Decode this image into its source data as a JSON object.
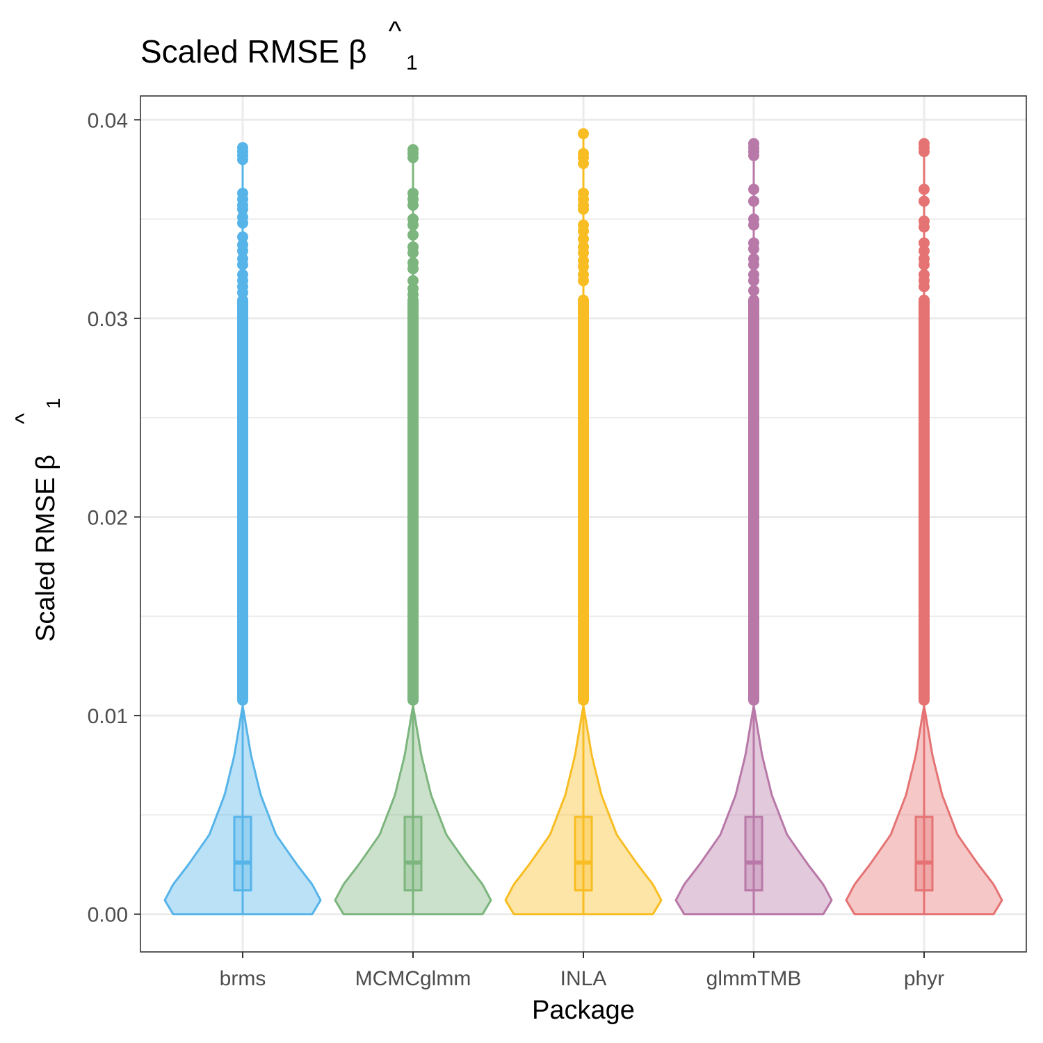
{
  "chart_data": {
    "type": "violin",
    "title": "Scaled RMSE β̂1",
    "title_parts": {
      "main": "Scaled RMSE β",
      "hat": "^",
      "sub": "1"
    },
    "xlabel": "Package",
    "ylabel": "Scaled RMSE β̂1",
    "ylabel_parts": {
      "main": "Scaled RMSE β",
      "hat": "^",
      "sub": "1"
    },
    "ylim": [
      -0.0019,
      0.0412
    ],
    "yticks": [
      0.0,
      0.01,
      0.02,
      0.03,
      0.04
    ],
    "ytick_labels": [
      "0.00",
      "0.01",
      "0.02",
      "0.03",
      "0.04"
    ],
    "grid": true,
    "legend": "none",
    "categories": [
      "brms",
      "MCMCglmm",
      "INLA",
      "glmmTMB",
      "phyr"
    ],
    "series": [
      {
        "color": "#56B4E9",
        "box": {
          "q1": 0.0012,
          "median": 0.0026,
          "q3": 0.0049,
          "whisker_low": 0.0,
          "whisker_high": 0.0105
        },
        "max": 0.0386,
        "outliers": [
          0.0386,
          0.0384,
          0.0382,
          0.038,
          0.0363,
          0.036,
          0.0357,
          0.0355,
          0.0351,
          0.0348,
          0.0341,
          0.0337,
          0.0334,
          0.033,
          0.0327,
          0.0322,
          0.0319,
          0.0316,
          0.0313
        ]
      },
      {
        "color": "#7CB57D",
        "box": {
          "q1": 0.0012,
          "median": 0.0026,
          "q3": 0.0049,
          "whisker_low": 0.0,
          "whisker_high": 0.0105
        },
        "max": 0.0385,
        "outliers": [
          0.0385,
          0.0383,
          0.0381,
          0.0363,
          0.036,
          0.0357,
          0.035,
          0.0347,
          0.0342,
          0.0336,
          0.0333,
          0.0328,
          0.0325,
          0.0319,
          0.0315,
          0.0312
        ]
      },
      {
        "color": "#F8BD23",
        "box": {
          "q1": 0.0012,
          "median": 0.0026,
          "q3": 0.0049,
          "whisker_low": 0.0,
          "whisker_high": 0.0105
        },
        "max": 0.0393,
        "outliers": [
          0.0393,
          0.0383,
          0.0381,
          0.0378,
          0.0363,
          0.036,
          0.0357,
          0.0355,
          0.0347,
          0.0344,
          0.034,
          0.0336,
          0.0333,
          0.0329,
          0.0326,
          0.0322,
          0.0319
        ]
      },
      {
        "color": "#B878A8",
        "box": {
          "q1": 0.0012,
          "median": 0.0026,
          "q3": 0.0049,
          "whisker_low": 0.0,
          "whisker_high": 0.0105
        },
        "max": 0.0388,
        "outliers": [
          0.0388,
          0.0386,
          0.0384,
          0.0382,
          0.0365,
          0.0359,
          0.035,
          0.0347,
          0.0338,
          0.0335,
          0.033,
          0.0327,
          0.0322,
          0.0319,
          0.0314
        ]
      },
      {
        "color": "#E57373",
        "box": {
          "q1": 0.0012,
          "median": 0.0026,
          "q3": 0.0049,
          "whisker_low": 0.0,
          "whisker_high": 0.0105
        },
        "max": 0.0388,
        "outliers": [
          0.0388,
          0.0386,
          0.0384,
          0.0365,
          0.0359,
          0.0349,
          0.0346,
          0.0338,
          0.0334,
          0.033,
          0.0327,
          0.0322,
          0.0319,
          0.0316
        ]
      }
    ]
  }
}
